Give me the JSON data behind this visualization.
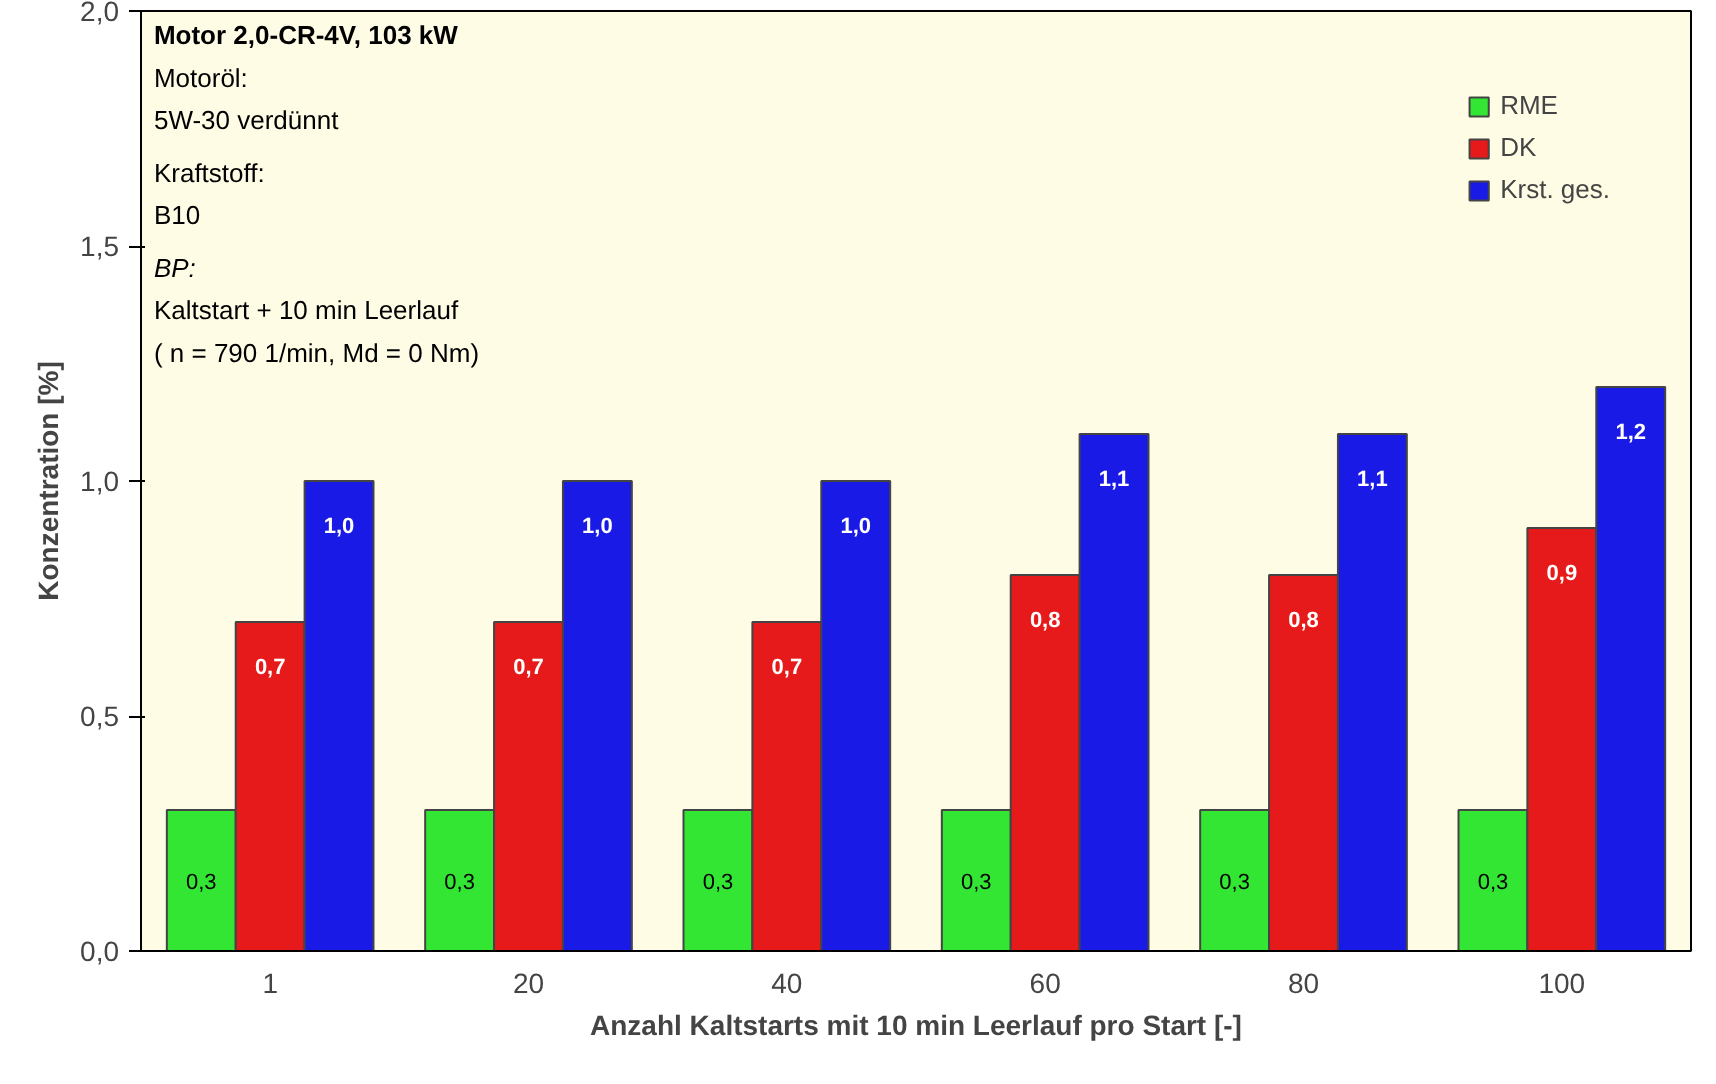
{
  "chart_data": {
    "type": "bar",
    "xlabel": "Anzahl Kaltstarts mit 10 min Leerlauf pro Start [-]",
    "ylabel": "Konzentration [%]",
    "categories": [
      "1",
      "20",
      "40",
      "60",
      "80",
      "100"
    ],
    "series": [
      {
        "name": "RME",
        "color": "#33e633",
        "values": [
          0.3,
          0.3,
          0.3,
          0.3,
          0.3,
          0.3
        ],
        "value_labels": [
          "0,3",
          "0,3",
          "0,3",
          "0,3",
          "0,3",
          "0,3"
        ]
      },
      {
        "name": "DK",
        "color": "#e61a1a",
        "values": [
          0.7,
          0.7,
          0.7,
          0.8,
          0.8,
          0.9
        ],
        "value_labels": [
          "0,7",
          "0,7",
          "0,7",
          "0,8",
          "0,8",
          "0,9"
        ]
      },
      {
        "name": "Krst. ges.",
        "color": "#1a1ae6",
        "values": [
          1.0,
          1.0,
          1.0,
          1.1,
          1.1,
          1.2
        ],
        "value_labels": [
          "1,0",
          "1,0",
          "1,0",
          "1,1",
          "1,1",
          "1,2"
        ]
      }
    ],
    "ylim": [
      0,
      2.0
    ],
    "yticks": [
      {
        "value": 0,
        "label": "0,0"
      },
      {
        "value": 0.5,
        "label": "0,5"
      },
      {
        "value": 1.0,
        "label": "1,0"
      },
      {
        "value": 1.5,
        "label": "1,5"
      },
      {
        "value": 2.0,
        "label": "2,0"
      }
    ],
    "legend": "top right",
    "annotations": [
      "Motor 2,0-CR-4V, 103 kW",
      "Motoröl:",
      "5W-30 verdünnt",
      "Kraftstoff:",
      "B10",
      "BP:",
      "Kaltstart + 10 min Leerlauf",
      "( n = 790 1/min, Md = 0 Nm)"
    ]
  }
}
